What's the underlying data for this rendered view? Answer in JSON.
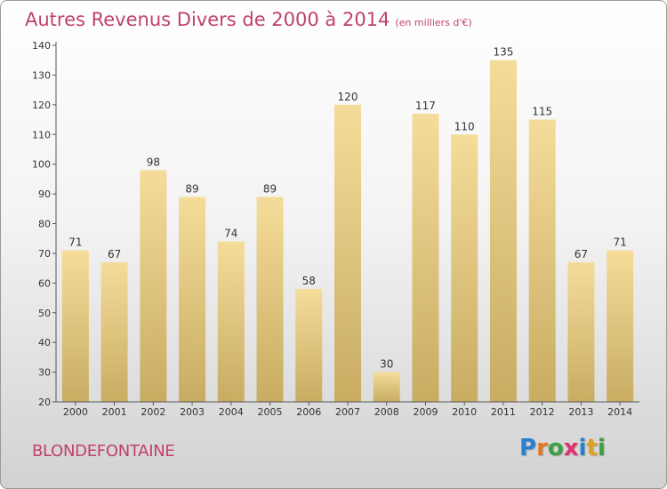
{
  "title": "Autres Revenus Divers de 2000 à 2014",
  "unit_note": "(en milliers d'€)",
  "commune": "BLONDEFONTAINE",
  "logo": {
    "letters": [
      "P",
      "r",
      "o",
      "x",
      "i",
      "t",
      "i"
    ],
    "colors": [
      "#2a7fd0",
      "#e07820",
      "#3aa040",
      "#e03070",
      "#2a7fd0",
      "#e0a020",
      "#3aa040"
    ]
  },
  "chart_data": {
    "type": "bar",
    "categories": [
      "2000",
      "2001",
      "2002",
      "2003",
      "2004",
      "2005",
      "2006",
      "2007",
      "2008",
      "2009",
      "2010",
      "2011",
      "2012",
      "2013",
      "2014"
    ],
    "values": [
      71,
      67,
      98,
      89,
      74,
      89,
      58,
      120,
      30,
      117,
      110,
      135,
      115,
      67,
      71
    ],
    "yticks": [
      20,
      30,
      40,
      50,
      60,
      70,
      80,
      90,
      100,
      110,
      120,
      130,
      140
    ],
    "ylim": [
      20,
      140
    ],
    "grid": false,
    "bar_color": "#e8c87a"
  }
}
